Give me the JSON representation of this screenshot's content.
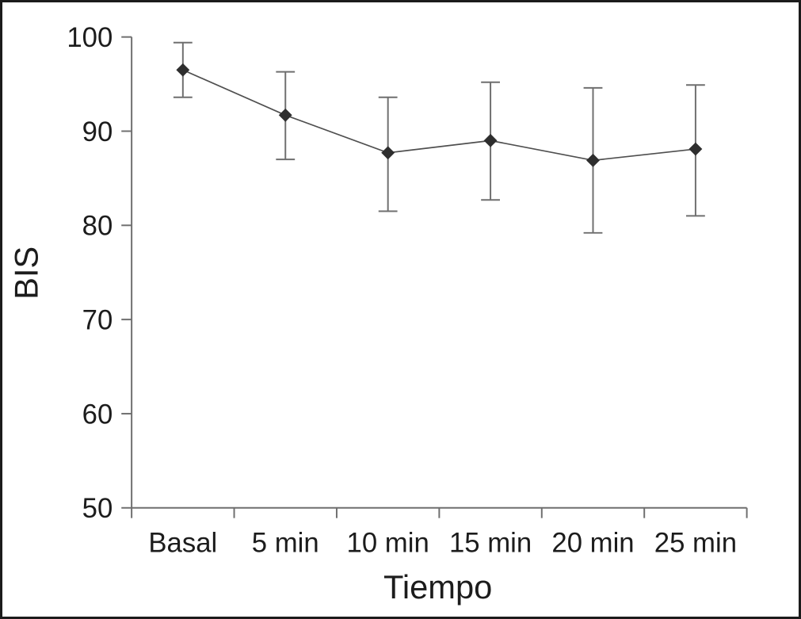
{
  "figure": {
    "background": "#ffffff",
    "frame_color": "#1c1c1c"
  },
  "chart_data": {
    "type": "line",
    "xlabel": "Tiempo",
    "ylabel": "BIS",
    "categories": [
      "Basal",
      "5 min",
      "10 min",
      "15 min",
      "20 min",
      "25 min"
    ],
    "series": [
      {
        "name": "BIS",
        "values": [
          96.5,
          91.7,
          87.7,
          89.0,
          86.9,
          88.1
        ],
        "error_low": [
          93.6,
          87.0,
          81.5,
          82.7,
          79.2,
          81.0
        ],
        "error_high": [
          99.4,
          96.3,
          93.6,
          95.2,
          94.6,
          94.9
        ]
      }
    ],
    "ylim": [
      50,
      100
    ],
    "yticks": [
      50,
      60,
      70,
      80,
      90,
      100
    ],
    "grid": false,
    "legend": false,
    "marker": "diamond",
    "colors": {
      "line": "#4f4f4f",
      "error_bar": "#6f6f6f",
      "marker": "#2e2e2e",
      "axis": "#6f6f6f",
      "text": "#1c1c1c"
    }
  }
}
